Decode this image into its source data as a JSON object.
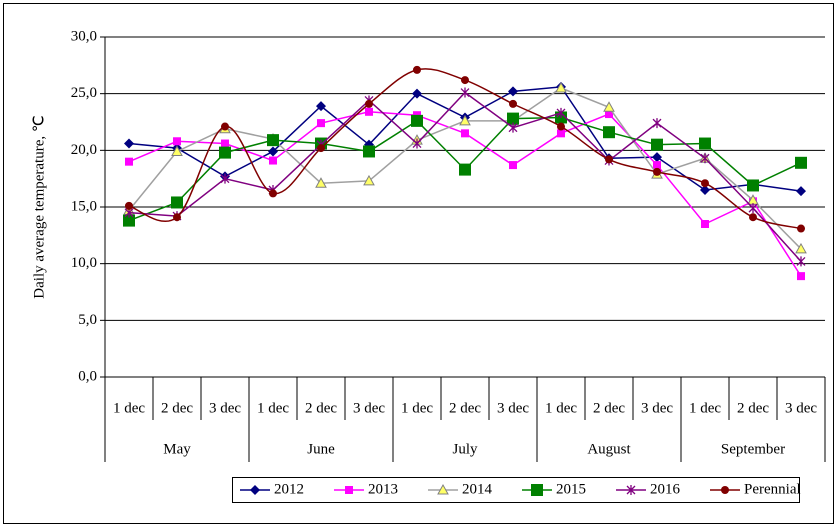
{
  "chart_data": {
    "type": "line",
    "y_label": "Daily average temperature, ℃",
    "categories": [
      "1 dec",
      "2 dec",
      "3 dec",
      "1 dec",
      "2 dec",
      "3 dec",
      "1 dec",
      "2 dec",
      "3 dec",
      "1 dec",
      "2 dec",
      "3 dec",
      "1 dec",
      "2 dec",
      "3 dec"
    ],
    "months": [
      "May",
      "June",
      "July",
      "August",
      "September"
    ],
    "ylim": [
      0,
      30
    ],
    "yticks": [
      {
        "value": 0,
        "label": "0,0"
      },
      {
        "value": 5,
        "label": "5,0"
      },
      {
        "value": 10,
        "label": "10,0"
      },
      {
        "value": 15,
        "label": "15,0"
      },
      {
        "value": 20,
        "label": "20,0"
      },
      {
        "value": 25,
        "label": "25,0"
      },
      {
        "value": 30,
        "label": "30,0"
      }
    ],
    "grid": true,
    "legend": "bottom",
    "series": [
      {
        "name": "2012",
        "color": "#000080",
        "marker": "diamond",
        "smooth": false,
        "values": [
          20.6,
          20.2,
          17.7,
          19.9,
          23.9,
          20.5,
          25.0,
          22.9,
          25.2,
          25.6,
          19.3,
          19.4,
          16.5,
          17.0,
          16.4
        ]
      },
      {
        "name": "2013",
        "color": "#ff00ff",
        "marker": "square",
        "smooth": false,
        "values": [
          19.0,
          20.8,
          20.6,
          19.1,
          22.4,
          23.4,
          23.1,
          21.5,
          18.7,
          21.5,
          23.2,
          18.7,
          13.5,
          15.5,
          8.9
        ]
      },
      {
        "name": "2014",
        "color": "#a0a0a0",
        "marker": "triangle",
        "smooth": false,
        "values": [
          14.7,
          19.9,
          21.9,
          21.0,
          17.1,
          17.3,
          20.9,
          22.6,
          22.6,
          25.5,
          23.8,
          17.9,
          19.3,
          15.6,
          11.3
        ]
      },
      {
        "name": "2015",
        "color": "#008000",
        "marker": "bigsquare",
        "smooth": false,
        "values": [
          13.8,
          15.4,
          19.8,
          20.9,
          20.6,
          19.9,
          22.6,
          18.3,
          22.8,
          22.9,
          21.6,
          20.5,
          20.6,
          16.9,
          18.9
        ]
      },
      {
        "name": "2016",
        "color": "#800080",
        "marker": "star",
        "smooth": false,
        "values": [
          14.5,
          14.2,
          17.5,
          16.5,
          20.5,
          24.4,
          20.6,
          25.1,
          22.0,
          23.3,
          19.1,
          22.4,
          19.3,
          14.9,
          10.2
        ]
      },
      {
        "name": "Perennial",
        "color": "#800000",
        "marker": "circle",
        "smooth": true,
        "values": [
          15.1,
          14.1,
          22.1,
          16.2,
          20.2,
          24.1,
          27.1,
          26.2,
          24.1,
          22.1,
          19.2,
          18.1,
          17.1,
          14.1,
          13.1
        ]
      }
    ]
  }
}
